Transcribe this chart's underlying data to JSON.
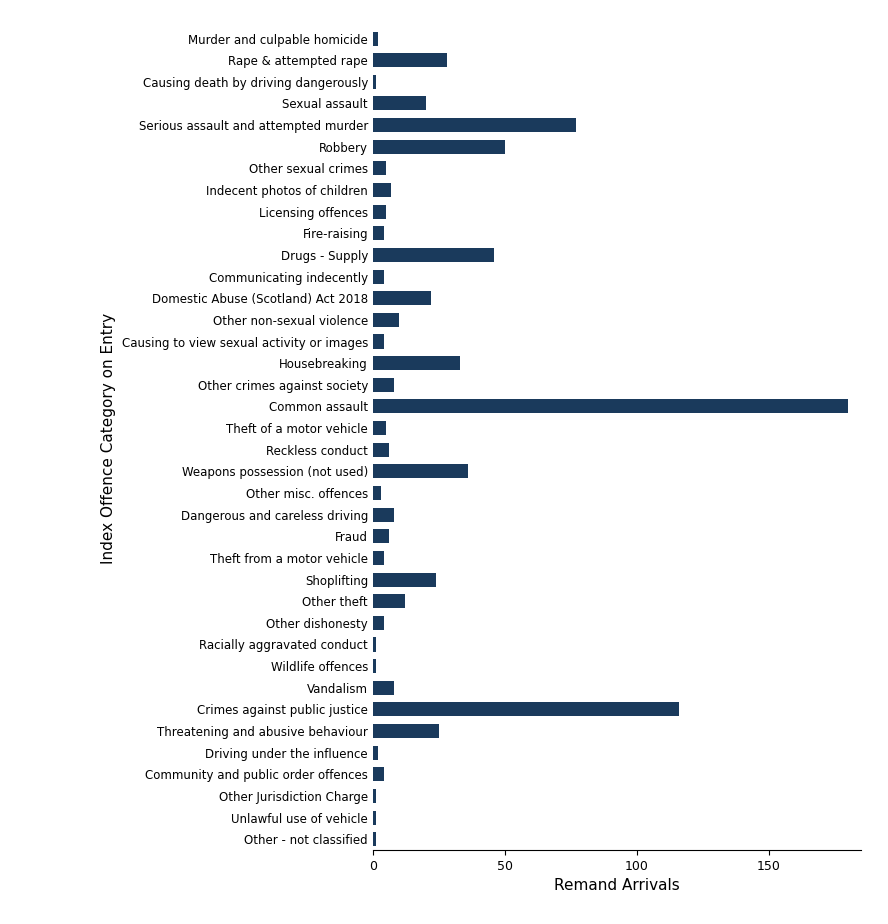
{
  "categories": [
    "Murder and culpable homicide",
    "Rape & attempted rape",
    "Causing death by driving dangerously",
    "Sexual assault",
    "Serious assault and attempted murder",
    "Robbery",
    "Other sexual crimes",
    "Indecent photos of children",
    "Licensing offences",
    "Fire-raising",
    "Drugs - Supply",
    "Communicating indecently",
    "Domestic Abuse (Scotland) Act 2018",
    "Other non-sexual violence",
    "Causing to view sexual activity or images",
    "Housebreaking",
    "Other crimes against society",
    "Common assault",
    "Theft of a motor vehicle",
    "Reckless conduct",
    "Weapons possession (not used)",
    "Other misc. offences",
    "Dangerous and careless driving",
    "Fraud",
    "Theft from a motor vehicle",
    "Shoplifting",
    "Other theft",
    "Other dishonesty",
    "Racially aggravated conduct",
    "Wildlife offences",
    "Vandalism",
    "Crimes against public justice",
    "Threatening and abusive behaviour",
    "Driving under the influence",
    "Community and public order offences",
    "Other Jurisdiction Charge",
    "Unlawful use of vehicle",
    "Other - not classified"
  ],
  "values": [
    2,
    28,
    1,
    20,
    77,
    50,
    5,
    7,
    5,
    4,
    46,
    4,
    22,
    10,
    4,
    33,
    8,
    180,
    5,
    6,
    36,
    3,
    8,
    6,
    4,
    24,
    12,
    4,
    1,
    1,
    8,
    116,
    25,
    2,
    4,
    1,
    1,
    1
  ],
  "bar_color": "#1a3a5c",
  "xlabel": "Remand Arrivals",
  "ylabel": "Index Offence Category on Entry",
  "xlim": [
    0,
    185
  ],
  "xticks": [
    0,
    50,
    100,
    150
  ],
  "figure_bgcolor": "#ffffff",
  "axes_bgcolor": "#ffffff",
  "label_fontsize": 8.5,
  "axis_label_fontsize": 11,
  "tick_fontsize": 9,
  "bar_height": 0.65
}
